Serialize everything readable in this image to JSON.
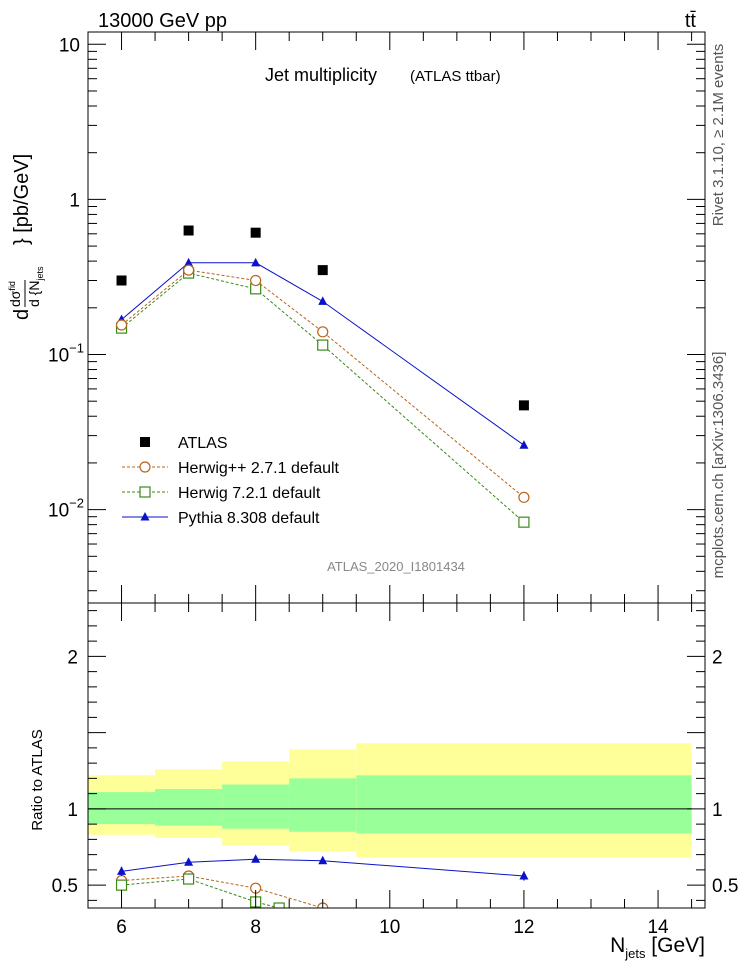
{
  "header": {
    "left": "13000 GeV pp",
    "right": "tt̄"
  },
  "side_labels": {
    "rivet": "Rivet 3.1.10, ≥ 2.1M events",
    "mcplots": "mcplots.cern.ch [arXiv:1306.3436]"
  },
  "chart_data": [
    {
      "type": "scatter",
      "panel": "main",
      "title": "Jet multiplicity",
      "subtitle": "(ATLAS ttbar)",
      "analysis_id": "ATLAS_2020_I1801434",
      "ylabel": {
        "d1": "d",
        "sigma_num": "dσ",
        "fid_sup": "fid",
        "den": "d {N",
        "den_sub": "jets",
        "tail": "} [pb/GeV]"
      },
      "yscale": "log",
      "ylim": [
        0.0025,
        12
      ],
      "xlim": [
        5.5,
        14.7
      ],
      "y_ticks": [
        {
          "v": 10,
          "label": "10",
          "sup": ""
        },
        {
          "v": 1,
          "label": "1",
          "sup": ""
        },
        {
          "v": 0.1,
          "label": "10",
          "sup": "−1"
        },
        {
          "v": 0.01,
          "label": "10",
          "sup": "−2"
        }
      ],
      "legend_position": "bottom-left",
      "series": [
        {
          "name": "ATLAS",
          "marker": "square-filled",
          "color": "#000000",
          "x": [
            6,
            7,
            8,
            9,
            12
          ],
          "y": [
            0.3,
            0.63,
            0.61,
            0.35,
            0.047
          ]
        },
        {
          "name": "Herwig++ 2.7.1 default",
          "marker": "circle-open",
          "line": "dashed",
          "color": "#b8651b",
          "x": [
            6,
            7,
            8,
            9,
            12
          ],
          "y": [
            0.155,
            0.35,
            0.3,
            0.14,
            0.012
          ]
        },
        {
          "name": "Herwig 7.2.1 default",
          "marker": "square-open",
          "line": "dashed",
          "color": "#3a8a17",
          "x": [
            6,
            7,
            8,
            9,
            12
          ],
          "y": [
            0.148,
            0.335,
            0.265,
            0.115,
            0.0083
          ]
        },
        {
          "name": "Pythia 8.308 default",
          "marker": "triangle-filled",
          "line": "solid",
          "color": "#0a12c8",
          "x": [
            6,
            7,
            8,
            9,
            12
          ],
          "y": [
            0.168,
            0.39,
            0.39,
            0.22,
            0.026
          ]
        }
      ]
    },
    {
      "type": "line",
      "panel": "ratio",
      "ylabel": "Ratio to ATLAS",
      "xlabel": {
        "main": "N",
        "sub": "jets",
        "unit": " [GeV]"
      },
      "ylim": [
        0.35,
        2.35
      ],
      "xlim": [
        5.5,
        14.7
      ],
      "y_ticks": [
        0.5,
        1,
        2
      ],
      "x_ticks": [
        6,
        8,
        10,
        12,
        14
      ],
      "bands": {
        "edges": [
          5.5,
          6.5,
          7.5,
          8.5,
          9.5,
          14.5
        ],
        "yellow_low": [
          0.83,
          0.81,
          0.76,
          0.72,
          0.68
        ],
        "yellow_high": [
          1.22,
          1.26,
          1.31,
          1.39,
          1.43
        ],
        "green_low": [
          0.9,
          0.89,
          0.87,
          0.85,
          0.84
        ],
        "green_high": [
          1.11,
          1.13,
          1.16,
          1.2,
          1.22
        ]
      },
      "series": [
        {
          "name": "Herwig++ 2.7.1 default",
          "marker": "circle-open",
          "line": "dashed",
          "color": "#b8651b",
          "x": [
            6,
            7,
            8,
            9
          ],
          "y": [
            0.53,
            0.56,
            0.48,
            0.35
          ]
        },
        {
          "name": "Herwig 7.2.1 default",
          "marker": "square-open",
          "line": "dashed",
          "color": "#3a8a17",
          "x": [
            6,
            7,
            8,
            8.35
          ],
          "y": [
            0.5,
            0.54,
            0.39,
            0.35
          ]
        },
        {
          "name": "Pythia 8.308 default",
          "marker": "triangle-filled",
          "line": "solid",
          "color": "#0a12c8",
          "x": [
            6,
            7,
            8,
            9,
            12
          ],
          "y": [
            0.59,
            0.65,
            0.67,
            0.66,
            0.56
          ],
          "err": [
            0.03,
            0.02,
            0.02,
            0.02,
            0.03
          ]
        }
      ]
    }
  ]
}
